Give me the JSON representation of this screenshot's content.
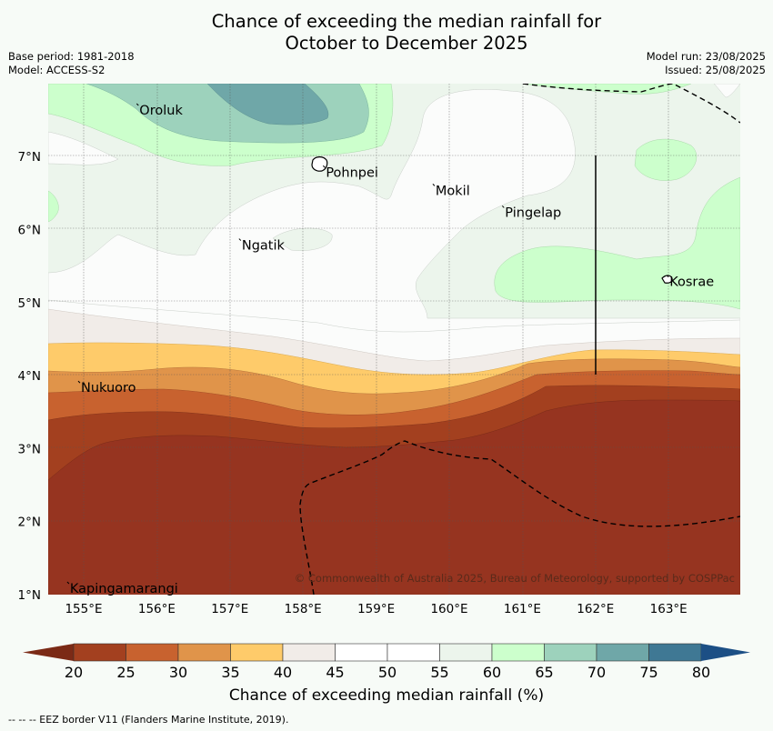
{
  "title_line1": "Chance of exceeding the median rainfall for",
  "title_line2": "October to December 2025",
  "base_period": "Base period: 1981-2018",
  "model": "Model: ACCESS-S2",
  "model_run": "Model run: 23/08/2025",
  "issued": "Issued: 25/08/2025",
  "copyright": "© Commonwealth of Australia 2025, Bureau of Meteorology, supported by COSPPac",
  "footer_note": "--  --  -- EEZ border V11 (Flanders Marine Institute, 2019).",
  "colorbar_label": "Chance of exceeding median rainfall (%)",
  "colorbar_ticks": [
    "20",
    "25",
    "30",
    "35",
    "40",
    "45",
    "50",
    "55",
    "60",
    "65",
    "70",
    "75",
    "80"
  ],
  "colorbar_colors": [
    "#7b2a16",
    "#a3401f",
    "#c8622f",
    "#e0944a",
    "#fecb6a",
    "#f1ece8",
    "#ffffff",
    "#ffffff",
    "#ecf5ec",
    "#ccffcc",
    "#9dd2bc",
    "#6fa7a8",
    "#3f7894",
    "#1c4f85"
  ],
  "x_ticks": [
    "155°E",
    "156°E",
    "157°E",
    "158°E",
    "159°E",
    "160°E",
    "161°E",
    "162°E",
    "163°E"
  ],
  "y_ticks": [
    "1°N",
    "2°N",
    "3°N",
    "4°N",
    "5°N",
    "6°N",
    "7°N"
  ],
  "places": [
    {
      "name": "Oroluk",
      "lon": 155.75,
      "lat": 7.65
    },
    {
      "name": "Pohnpei",
      "lon": 158.3,
      "lat": 6.8
    },
    {
      "name": "Mokil",
      "lon": 159.8,
      "lat": 6.55
    },
    {
      "name": "Pingelap",
      "lon": 160.75,
      "lat": 6.25
    },
    {
      "name": "Ngatik",
      "lon": 157.15,
      "lat": 5.8
    },
    {
      "name": "Kosrae",
      "lon": 163.0,
      "lat": 5.3
    },
    {
      "name": "Nukuoro",
      "lon": 154.95,
      "lat": 3.85
    },
    {
      "name": "Kapingamarangi",
      "lon": 154.8,
      "lat": 1.1
    }
  ]
}
